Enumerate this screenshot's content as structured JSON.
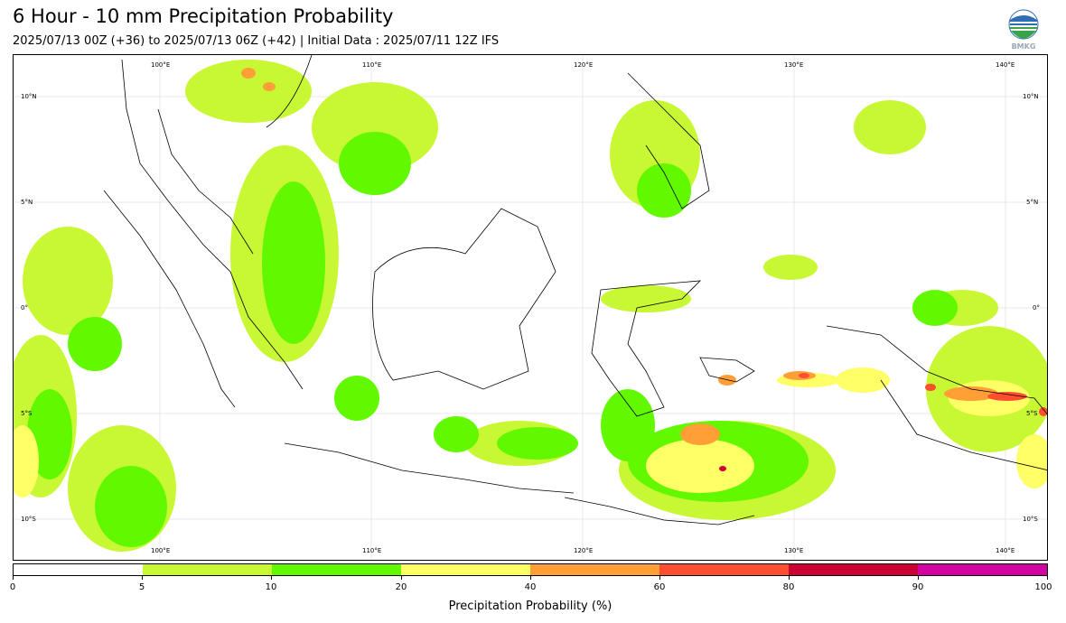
{
  "header": {
    "title": "6 Hour - 10 mm Precipitation Probability",
    "subtitle": "2025/07/13 00Z (+36) to 2025/07/13 06Z (+42) | Initial Data : 2025/07/11 12Z IFS",
    "logo_text": "BMKG",
    "logo_icon": "bmkg-globe-logo"
  },
  "map": {
    "lon_labels": [
      "100°E",
      "110°E",
      "120°E",
      "130°E",
      "140°E"
    ],
    "lat_labels": [
      "10°N",
      "5°N",
      "0°",
      "5°S",
      "10°S"
    ],
    "grid": true,
    "land_color": "#ffffff",
    "coast_color": "#000000"
  },
  "colorbar": {
    "title": "Precipitation Probability (%)",
    "tick_labels": [
      "0",
      "5",
      "10",
      "20",
      "40",
      "60",
      "80",
      "90",
      "100"
    ],
    "colors": [
      "#ffffff",
      "#c8f733",
      "#62f900",
      "#ffff66",
      "#ff9f36",
      "#ff4f30",
      "#cc0033",
      "#d100a0"
    ]
  }
}
